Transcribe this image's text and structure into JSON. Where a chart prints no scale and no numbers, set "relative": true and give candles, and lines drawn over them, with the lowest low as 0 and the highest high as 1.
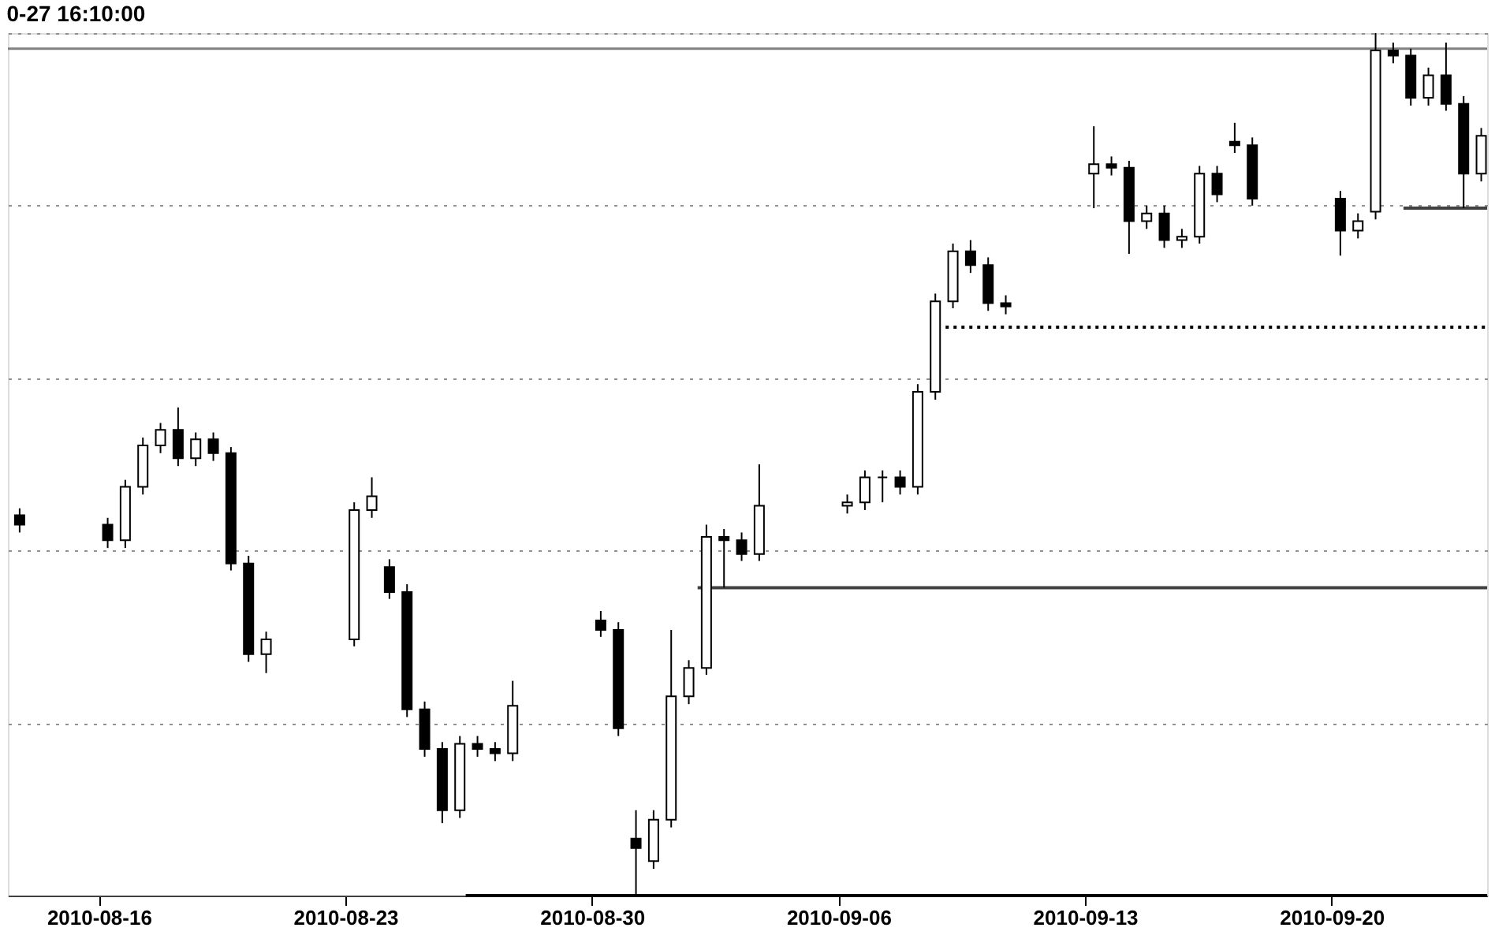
{
  "chart_data": {
    "type": "candlestick",
    "title": "0-27 16:10:00",
    "relative": true,
    "grid": "y",
    "tick_labels": "x",
    "xlim": [
      "2010-08-13T10:00",
      "2010-09-24T10:00"
    ],
    "xticks": [
      {
        "value": "2010-08-16",
        "label": "2010-08-16"
      },
      {
        "value": "2010-08-23",
        "label": "2010-08-23"
      },
      {
        "value": "2010-08-30",
        "label": "2010-08-30"
      },
      {
        "value": "2010-09-06",
        "label": "2010-09-06"
      },
      {
        "value": "2010-09-13",
        "label": "2010-09-13"
      },
      {
        "value": "2010-09-20",
        "label": "2010-09-20"
      }
    ],
    "x": [
      "2010-08-13T18:00",
      "2010-08-16T06:00",
      "2010-08-16T18:00",
      "2010-08-17T06:00",
      "2010-08-17T18:00",
      "2010-08-18T06:00",
      "2010-08-18T18:00",
      "2010-08-19T06:00",
      "2010-08-19T18:00",
      "2010-08-20T06:00",
      "2010-08-20T18:00",
      "2010-08-23T06:00",
      "2010-08-23T18:00",
      "2010-08-24T06:00",
      "2010-08-24T18:00",
      "2010-08-25T06:00",
      "2010-08-25T18:00",
      "2010-08-26T06:00",
      "2010-08-26T18:00",
      "2010-08-27T06:00",
      "2010-08-27T18:00",
      "2010-08-30T06:00",
      "2010-08-30T18:00",
      "2010-08-31T06:00",
      "2010-08-31T18:00",
      "2010-09-01T06:00",
      "2010-09-01T18:00",
      "2010-09-02T06:00",
      "2010-09-02T18:00",
      "2010-09-03T06:00",
      "2010-09-03T18:00",
      "2010-09-06T06:00",
      "2010-09-06T18:00",
      "2010-09-07T06:00",
      "2010-09-07T18:00",
      "2010-09-08T06:00",
      "2010-09-08T18:00",
      "2010-09-09T06:00",
      "2010-09-09T18:00",
      "2010-09-10T06:00",
      "2010-09-10T18:00",
      "2010-09-13T06:00",
      "2010-09-13T18:00",
      "2010-09-14T06:00",
      "2010-09-14T18:00",
      "2010-09-15T06:00",
      "2010-09-15T18:00",
      "2010-09-16T06:00",
      "2010-09-16T18:00",
      "2010-09-17T06:00",
      "2010-09-17T18:00",
      "2010-09-20T06:00",
      "2010-09-20T18:00",
      "2010-09-21T06:00",
      "2010-09-21T18:00",
      "2010-09-22T06:00",
      "2010-09-22T18:00",
      "2010-09-23T06:00",
      "2010-09-23T18:00",
      "2010-09-24T06:00"
    ],
    "ohlc": [
      [
        0.441,
        0.449,
        0.421,
        0.43
      ],
      [
        0.43,
        0.438,
        0.403,
        0.412
      ],
      [
        0.412,
        0.482,
        0.403,
        0.474
      ],
      [
        0.474,
        0.531,
        0.465,
        0.522
      ],
      [
        0.522,
        0.548,
        0.513,
        0.54
      ],
      [
        0.54,
        0.566,
        0.498,
        0.507
      ],
      [
        0.507,
        0.537,
        0.498,
        0.529
      ],
      [
        0.529,
        0.537,
        0.504,
        0.513
      ],
      [
        0.513,
        0.52,
        0.377,
        0.385
      ],
      [
        0.385,
        0.394,
        0.271,
        0.28
      ],
      [
        0.28,
        0.306,
        0.258,
        0.297
      ],
      [
        0.297,
        0.456,
        0.289,
        0.447
      ],
      [
        0.447,
        0.485,
        0.438,
        0.463
      ],
      [
        0.381,
        0.39,
        0.344,
        0.352
      ],
      [
        0.352,
        0.361,
        0.207,
        0.216
      ],
      [
        0.216,
        0.225,
        0.161,
        0.17
      ],
      [
        0.17,
        0.178,
        0.084,
        0.099
      ],
      [
        0.099,
        0.185,
        0.09,
        0.176
      ],
      [
        0.176,
        0.185,
        0.161,
        0.17
      ],
      [
        0.17,
        0.178,
        0.156,
        0.165
      ],
      [
        0.165,
        0.249,
        0.156,
        0.22
      ],
      [
        0.319,
        0.33,
        0.3,
        0.308
      ],
      [
        0.308,
        0.317,
        0.185,
        0.194
      ],
      [
        0.066,
        0.099,
        0.0,
        0.055
      ],
      [
        0.04,
        0.099,
        0.031,
        0.088
      ],
      [
        0.088,
        0.308,
        0.079,
        0.231
      ],
      [
        0.231,
        0.273,
        0.222,
        0.264
      ],
      [
        0.264,
        0.43,
        0.256,
        0.416
      ],
      [
        0.416,
        0.425,
        0.357,
        0.412
      ],
      [
        0.412,
        0.421,
        0.388,
        0.396
      ],
      [
        0.396,
        0.5,
        0.388,
        0.452
      ],
      [
        0.452,
        0.465,
        0.443,
        0.456
      ],
      [
        0.456,
        0.493,
        0.447,
        0.485
      ],
      [
        0.485,
        0.493,
        0.456,
        0.485
      ],
      [
        0.485,
        0.493,
        0.465,
        0.474
      ],
      [
        0.474,
        0.593,
        0.465,
        0.584
      ],
      [
        0.584,
        0.698,
        0.575,
        0.689
      ],
      [
        0.689,
        0.756,
        0.681,
        0.747
      ],
      [
        0.747,
        0.76,
        0.722,
        0.731
      ],
      [
        0.731,
        0.74,
        0.678,
        0.687
      ],
      [
        0.687,
        0.696,
        0.674,
        0.683
      ],
      [
        0.837,
        0.892,
        0.797,
        0.848
      ],
      [
        0.848,
        0.857,
        0.835,
        0.844
      ],
      [
        0.844,
        0.852,
        0.744,
        0.782
      ],
      [
        0.782,
        0.8,
        0.773,
        0.791
      ],
      [
        0.791,
        0.8,
        0.751,
        0.76
      ],
      [
        0.76,
        0.773,
        0.751,
        0.764
      ],
      [
        0.764,
        0.846,
        0.756,
        0.837
      ],
      [
        0.837,
        0.846,
        0.804,
        0.813
      ],
      [
        0.874,
        0.896,
        0.861,
        0.87
      ],
      [
        0.87,
        0.879,
        0.8,
        0.808
      ],
      [
        0.808,
        0.817,
        0.742,
        0.771
      ],
      [
        0.771,
        0.791,
        0.762,
        0.782
      ],
      [
        0.793,
        1.0,
        0.784,
        0.98
      ],
      [
        0.98,
        0.989,
        0.965,
        0.974
      ],
      [
        0.974,
        0.982,
        0.916,
        0.925
      ],
      [
        0.925,
        0.96,
        0.916,
        0.951
      ],
      [
        0.951,
        0.989,
        0.91,
        0.918
      ],
      [
        0.918,
        0.927,
        0.797,
        0.837
      ],
      [
        0.837,
        0.89,
        0.828,
        0.881
      ]
    ],
    "series": [
      {
        "type": "line",
        "color": "#404040",
        "line_style": "solid",
        "x": [
          "2010-09-22T01:00",
          "2010-09-24T10:00"
        ],
        "values": [
          0.797,
          0.797
        ]
      },
      {
        "type": "line",
        "color": "#000000",
        "line_style": "dotted",
        "x": [
          "2010-09-09T01:00",
          "2010-09-24T10:00"
        ],
        "values": [
          0.659,
          0.659
        ]
      },
      {
        "type": "line",
        "color": "#404040",
        "line_style": "solid",
        "x": [
          "2010-09-02T00:00",
          "2010-09-24T10:00"
        ],
        "values": [
          0.357,
          0.357
        ]
      },
      {
        "type": "line",
        "color": "#000000",
        "line_style": "solid",
        "x": [
          "2010-08-26T10:00",
          "2010-09-24T10:00"
        ],
        "values": [
          0.0,
          0.0
        ]
      }
    ],
    "ref_lines": [
      {
        "axis": "y",
        "value": 0.982,
        "color": "#808080",
        "line_style": "solid"
      }
    ]
  }
}
